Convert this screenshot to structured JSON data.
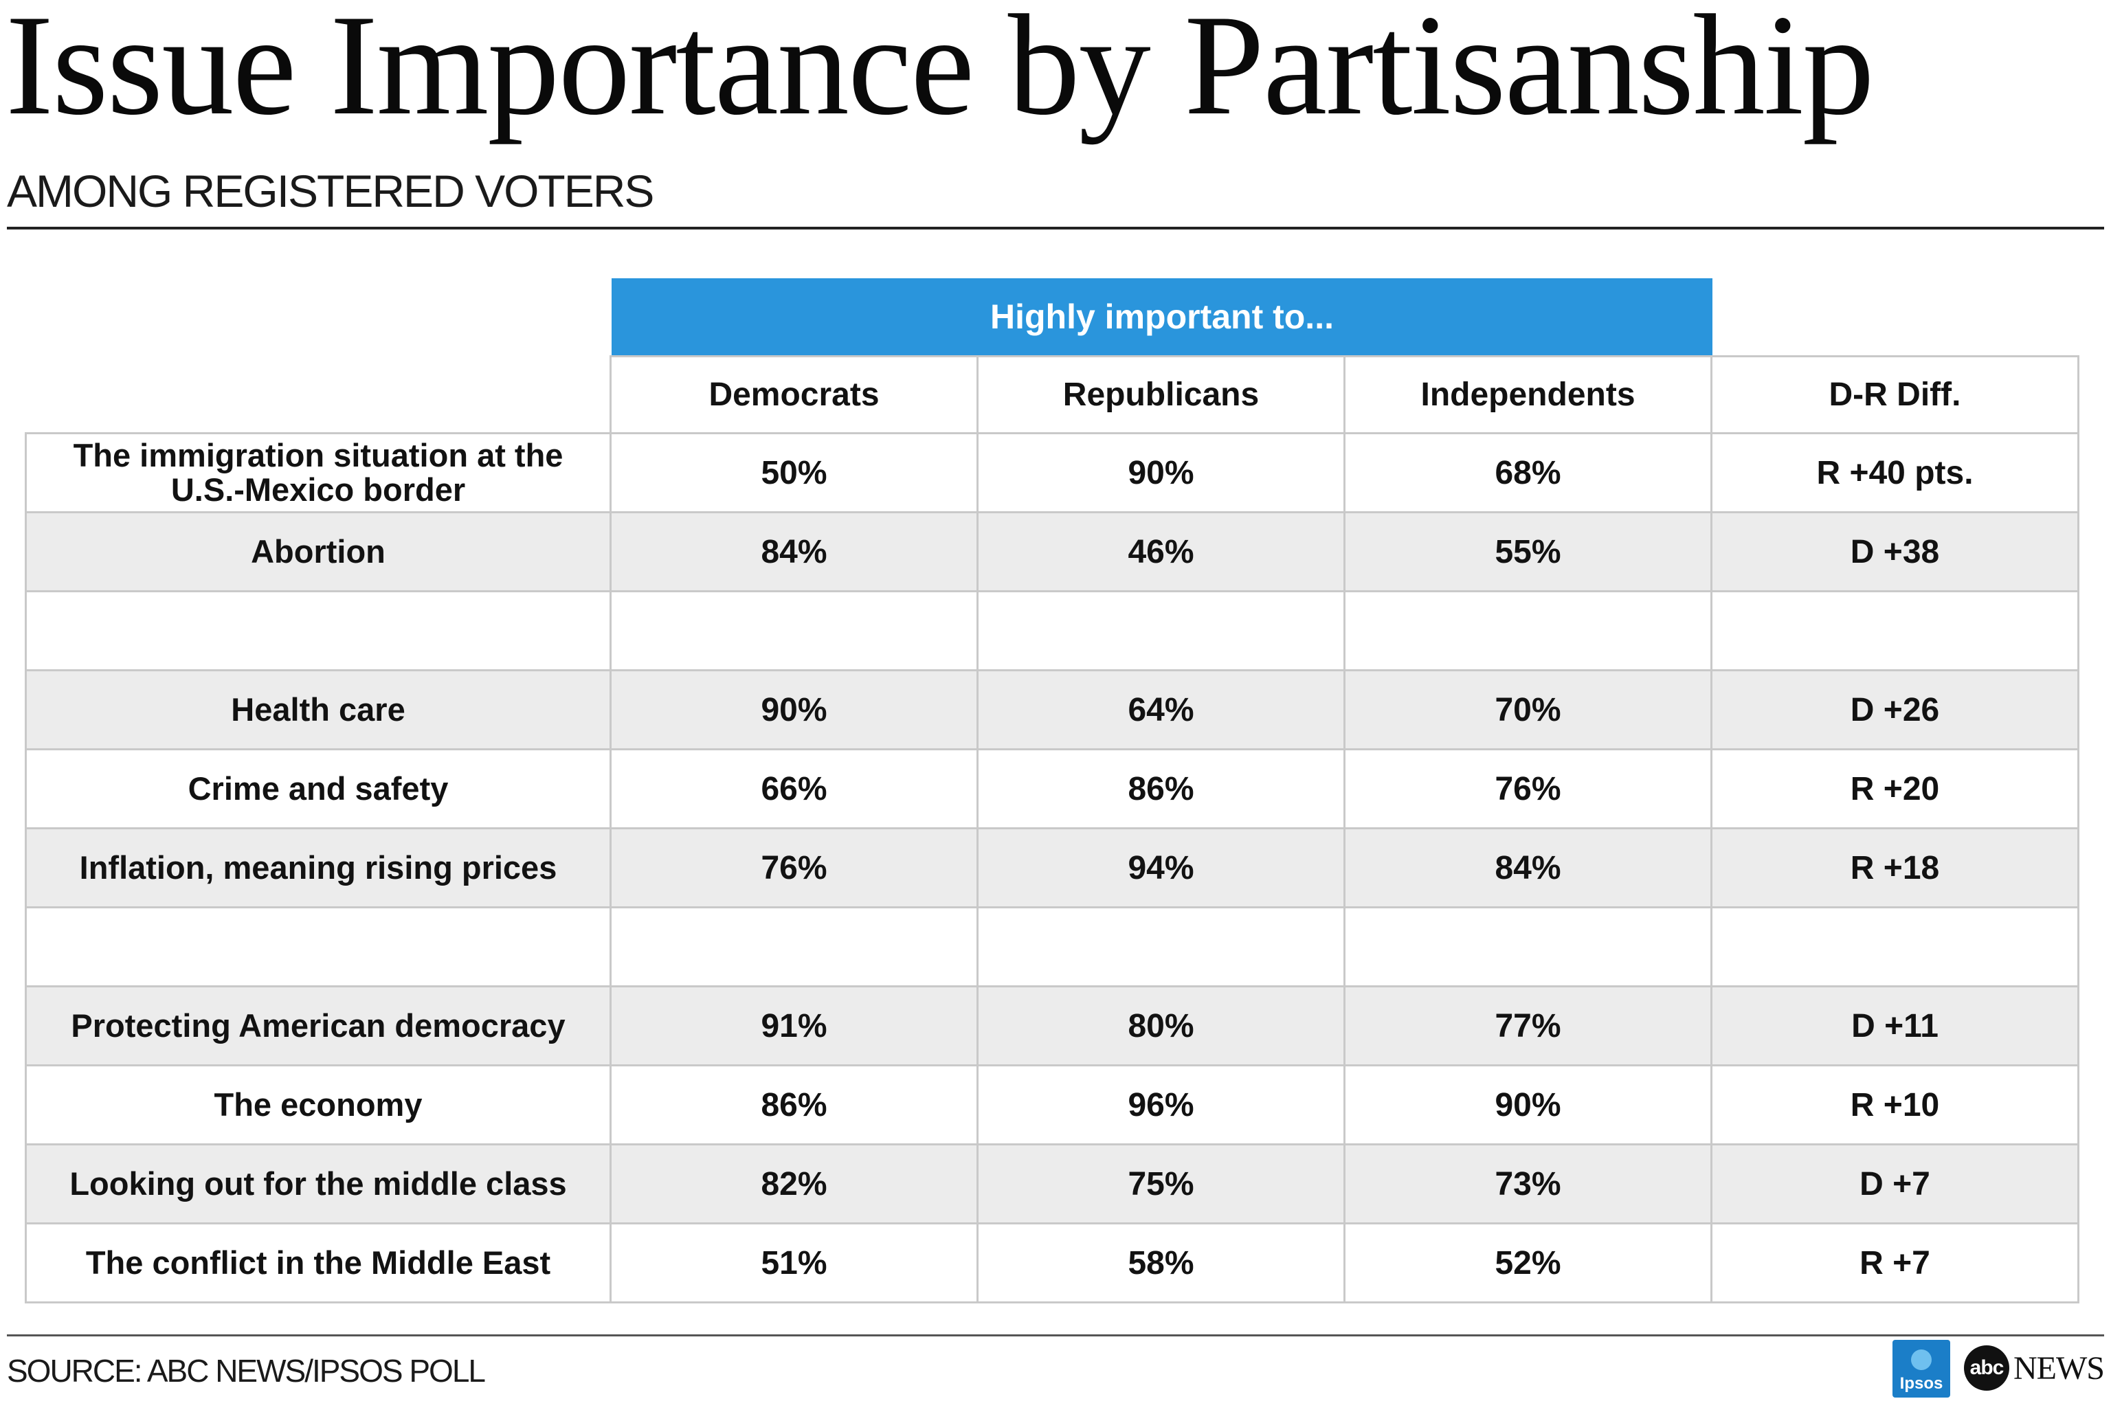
{
  "title": "Issue Importance by Partisanship",
  "subtitle": "AMONG REGISTERED VOTERS",
  "group_header": "Highly important to...",
  "source": "SOURCE: ABC NEWS/IPSOS POLL",
  "logos": {
    "ipsos": "Ipsos",
    "abc": "abc",
    "news": "NEWS"
  },
  "colors": {
    "band": "#2a95dc",
    "shade": "#ececec",
    "grid": "#c9c9c9"
  },
  "chart_data": {
    "type": "table",
    "title": "Issue Importance by Partisanship",
    "subtitle": "AMONG REGISTERED VOTERS",
    "columns": [
      "",
      "Democrats",
      "Republicans",
      "Independents",
      "D-R Diff."
    ],
    "rows": [
      [
        "The immigration situation at the U.S.-Mexico border",
        "50%",
        "90%",
        "68%",
        "R +40 pts."
      ],
      [
        "Abortion",
        "84%",
        "46%",
        "55%",
        "D +38"
      ],
      [
        "",
        "",
        "",
        "",
        ""
      ],
      [
        "Health care",
        "90%",
        "64%",
        "70%",
        "D +26"
      ],
      [
        "Crime and safety",
        "66%",
        "86%",
        "76%",
        "R +20"
      ],
      [
        "Inflation, meaning rising prices",
        "76%",
        "94%",
        "84%",
        "R +18"
      ],
      [
        "",
        "",
        "",
        "",
        ""
      ],
      [
        "Protecting American democracy",
        "91%",
        "80%",
        "77%",
        "D +11"
      ],
      [
        "The economy",
        "86%",
        "96%",
        "90%",
        "R +10"
      ],
      [
        "Looking out for the middle class",
        "82%",
        "75%",
        "73%",
        "D +7"
      ],
      [
        "The conflict in the Middle East",
        "51%",
        "58%",
        "52%",
        "R +7"
      ]
    ]
  }
}
